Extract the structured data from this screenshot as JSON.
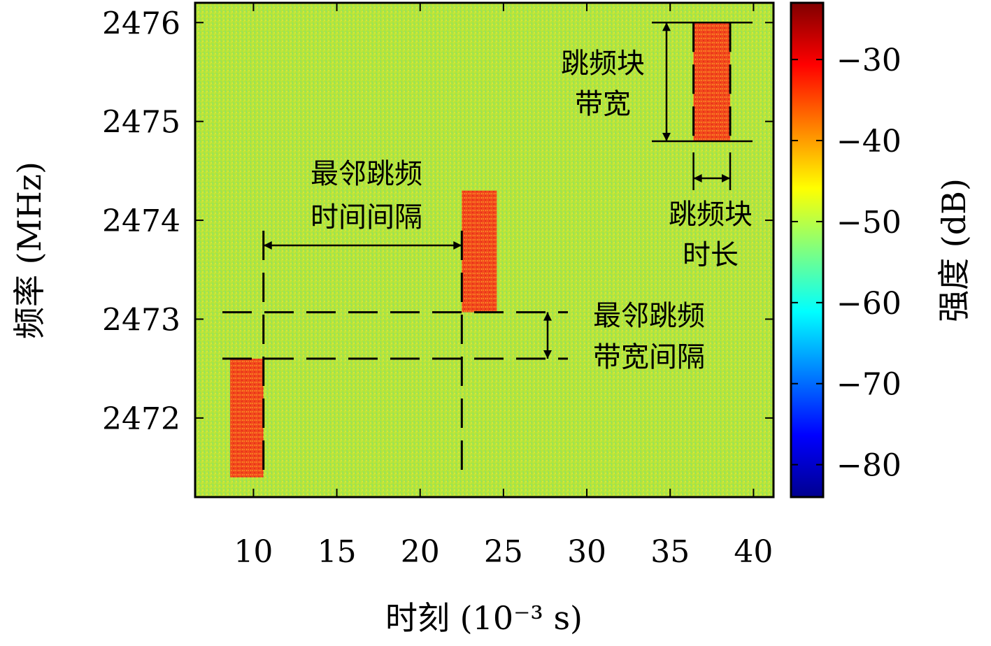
{
  "chart_data": {
    "type": "heatmap",
    "title": "",
    "xlabel": "时刻 (10⁻³ s)",
    "ylabel": "频率 (MHz)",
    "xlim": [
      6.5,
      41.2
    ],
    "ylim": [
      2471.2,
      2476.2
    ],
    "x_ticks": [
      10,
      15,
      20,
      25,
      30,
      35,
      40
    ],
    "x_tick_labels": [
      "10",
      "15",
      "20",
      "25",
      "30",
      "35",
      "40"
    ],
    "y_ticks": [
      2472,
      2473,
      2474,
      2475,
      2476
    ],
    "y_tick_labels": [
      "2472",
      "2473",
      "2474",
      "2475",
      "2476"
    ],
    "background_level_db": -48,
    "hop_blocks": [
      {
        "t_start": 8.6,
        "t_end": 10.6,
        "f_low": 2471.4,
        "f_high": 2472.6,
        "level_db": -32
      },
      {
        "t_start": 22.5,
        "t_end": 24.6,
        "f_low": 2473.07,
        "f_high": 2474.3,
        "level_db": -32
      },
      {
        "t_start": 36.4,
        "t_end": 38.6,
        "f_low": 2474.8,
        "f_high": 2476.0,
        "level_db": -32
      }
    ],
    "colorbar": {
      "label": "强度 (dB)",
      "min": -84,
      "max": -23,
      "ticks": [
        -30,
        -40,
        -50,
        -60,
        -70,
        -80
      ],
      "tick_labels": [
        "−30",
        "−40",
        "−50",
        "−60",
        "−70",
        "−80"
      ],
      "colormap": "jet"
    },
    "annotations": [
      {
        "text": [
          "跳频块",
          "带宽"
        ]
      },
      {
        "text": [
          "跳频块",
          "时长"
        ]
      },
      {
        "text": [
          "最邻跳频",
          "时间间隔"
        ]
      },
      {
        "text": [
          "最邻跳频",
          "带宽间隔"
        ]
      }
    ],
    "colors": {
      "background": "#b3e63a",
      "block": "#f24a1c",
      "frame": "#000000"
    }
  }
}
